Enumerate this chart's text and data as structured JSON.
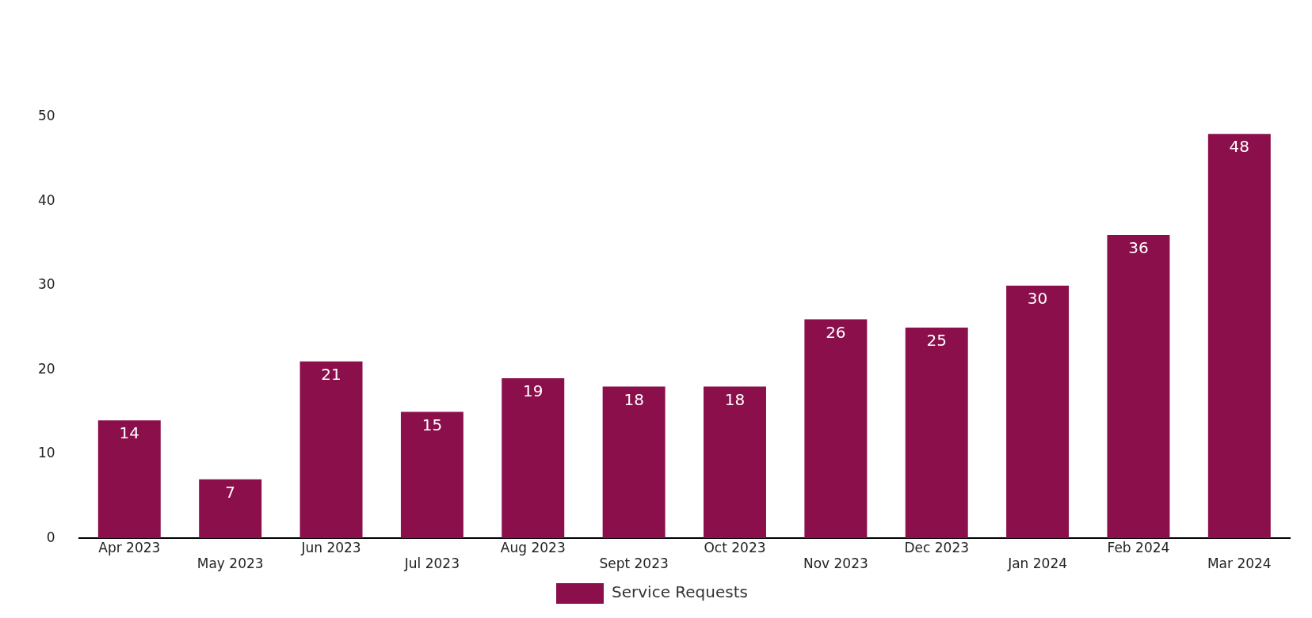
{
  "chart_data": {
    "type": "bar",
    "categories": [
      "Apr 2023",
      "May 2023",
      "Jun 2023",
      "Jul 2023",
      "Aug 2023",
      "Sept 2023",
      "Oct 2023",
      "Nov 2023",
      "Dec 2023",
      "Jan 2024",
      "Feb 2024",
      "Mar 2024"
    ],
    "series": [
      {
        "name": "Service Requests",
        "color": "#8a0f4b",
        "values": [
          14,
          7,
          21,
          15,
          19,
          18,
          18,
          26,
          25,
          30,
          36,
          48
        ]
      }
    ],
    "ylim": [
      0,
      50
    ],
    "yticks": [
      0,
      10,
      20,
      30,
      40,
      50
    ],
    "grid": false,
    "legend": "bottom",
    "data_labels": true
  }
}
